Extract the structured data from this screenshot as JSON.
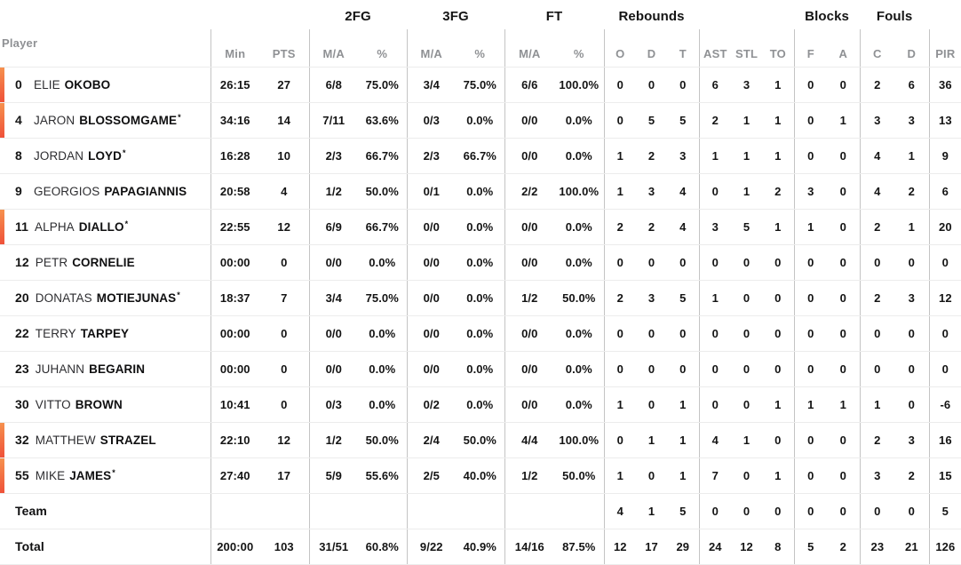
{
  "table": {
    "player_header": "Player",
    "groups": [
      "2FG",
      "3FG",
      "FT",
      "Rebounds",
      "Blocks",
      "Fouls"
    ],
    "subheaders": [
      "Min",
      "PTS",
      "M/A",
      "%",
      "M/A",
      "%",
      "M/A",
      "%",
      "O",
      "D",
      "T",
      "AST",
      "STL",
      "TO",
      "F",
      "A",
      "C",
      "D",
      "PIR"
    ],
    "starter_mark": "*",
    "players": [
      {
        "number": "0",
        "first": "ELIE",
        "last": "OKOBO",
        "starter": false,
        "on_court": true,
        "stats": [
          "26:15",
          "27",
          "6/8",
          "75.0%",
          "3/4",
          "75.0%",
          "6/6",
          "100.0%",
          "0",
          "0",
          "0",
          "6",
          "3",
          "1",
          "0",
          "0",
          "2",
          "6",
          "36"
        ]
      },
      {
        "number": "4",
        "first": "JARON",
        "last": "BLOSSOMGAME",
        "starter": true,
        "on_court": true,
        "stats": [
          "34:16",
          "14",
          "7/11",
          "63.6%",
          "0/3",
          "0.0%",
          "0/0",
          "0.0%",
          "0",
          "5",
          "5",
          "2",
          "1",
          "1",
          "0",
          "1",
          "3",
          "3",
          "13"
        ]
      },
      {
        "number": "8",
        "first": "JORDAN",
        "last": "LOYD",
        "starter": true,
        "on_court": false,
        "stats": [
          "16:28",
          "10",
          "2/3",
          "66.7%",
          "2/3",
          "66.7%",
          "0/0",
          "0.0%",
          "1",
          "2",
          "3",
          "1",
          "1",
          "1",
          "0",
          "0",
          "4",
          "1",
          "9"
        ]
      },
      {
        "number": "9",
        "first": "GEORGIOS",
        "last": "PAPAGIANNIS",
        "starter": false,
        "on_court": false,
        "stats": [
          "20:58",
          "4",
          "1/2",
          "50.0%",
          "0/1",
          "0.0%",
          "2/2",
          "100.0%",
          "1",
          "3",
          "4",
          "0",
          "1",
          "2",
          "3",
          "0",
          "4",
          "2",
          "6"
        ]
      },
      {
        "number": "11",
        "first": "ALPHA",
        "last": "DIALLO",
        "starter": true,
        "on_court": true,
        "stats": [
          "22:55",
          "12",
          "6/9",
          "66.7%",
          "0/0",
          "0.0%",
          "0/0",
          "0.0%",
          "2",
          "2",
          "4",
          "3",
          "5",
          "1",
          "1",
          "0",
          "2",
          "1",
          "20"
        ]
      },
      {
        "number": "12",
        "first": "PETR",
        "last": "CORNELIE",
        "starter": false,
        "on_court": false,
        "stats": [
          "00:00",
          "0",
          "0/0",
          "0.0%",
          "0/0",
          "0.0%",
          "0/0",
          "0.0%",
          "0",
          "0",
          "0",
          "0",
          "0",
          "0",
          "0",
          "0",
          "0",
          "0",
          "0"
        ]
      },
      {
        "number": "20",
        "first": "DONATAS",
        "last": "MOTIEJUNAS",
        "starter": true,
        "on_court": false,
        "stats": [
          "18:37",
          "7",
          "3/4",
          "75.0%",
          "0/0",
          "0.0%",
          "1/2",
          "50.0%",
          "2",
          "3",
          "5",
          "1",
          "0",
          "0",
          "0",
          "0",
          "2",
          "3",
          "12"
        ]
      },
      {
        "number": "22",
        "first": "TERRY",
        "last": "TARPEY",
        "starter": false,
        "on_court": false,
        "stats": [
          "00:00",
          "0",
          "0/0",
          "0.0%",
          "0/0",
          "0.0%",
          "0/0",
          "0.0%",
          "0",
          "0",
          "0",
          "0",
          "0",
          "0",
          "0",
          "0",
          "0",
          "0",
          "0"
        ]
      },
      {
        "number": "23",
        "first": "JUHANN",
        "last": "BEGARIN",
        "starter": false,
        "on_court": false,
        "stats": [
          "00:00",
          "0",
          "0/0",
          "0.0%",
          "0/0",
          "0.0%",
          "0/0",
          "0.0%",
          "0",
          "0",
          "0",
          "0",
          "0",
          "0",
          "0",
          "0",
          "0",
          "0",
          "0"
        ]
      },
      {
        "number": "30",
        "first": "VITTO",
        "last": "BROWN",
        "starter": false,
        "on_court": false,
        "stats": [
          "10:41",
          "0",
          "0/3",
          "0.0%",
          "0/2",
          "0.0%",
          "0/0",
          "0.0%",
          "1",
          "0",
          "1",
          "0",
          "0",
          "1",
          "1",
          "1",
          "1",
          "0",
          "-6"
        ]
      },
      {
        "number": "32",
        "first": "MATTHEW",
        "last": "STRAZEL",
        "starter": false,
        "on_court": true,
        "stats": [
          "22:10",
          "12",
          "1/2",
          "50.0%",
          "2/4",
          "50.0%",
          "4/4",
          "100.0%",
          "0",
          "1",
          "1",
          "4",
          "1",
          "0",
          "0",
          "0",
          "2",
          "3",
          "16"
        ]
      },
      {
        "number": "55",
        "first": "MIKE",
        "last": "JAMES",
        "starter": true,
        "on_court": true,
        "stats": [
          "27:40",
          "17",
          "5/9",
          "55.6%",
          "2/5",
          "40.0%",
          "1/2",
          "50.0%",
          "1",
          "0",
          "1",
          "7",
          "0",
          "1",
          "0",
          "0",
          "3",
          "2",
          "15"
        ]
      }
    ],
    "team_row": {
      "label": "Team",
      "stats": [
        "",
        "",
        "",
        "",
        "",
        "",
        "",
        "",
        "4",
        "1",
        "5",
        "0",
        "0",
        "0",
        "0",
        "0",
        "0",
        "0",
        "5"
      ]
    },
    "total_row": {
      "label": "Total",
      "stats": [
        "200:00",
        "103",
        "31/51",
        "60.8%",
        "9/22",
        "40.9%",
        "14/16",
        "87.5%",
        "12",
        "17",
        "29",
        "24",
        "12",
        "8",
        "5",
        "2",
        "23",
        "21",
        "126"
      ]
    }
  },
  "colors": {
    "on_court_bar_top": "#F6914E",
    "on_court_bar_bottom": "#EF5139",
    "header_gray": "#8F9194",
    "text_black": "#141414",
    "row_divider": "#ECECEC",
    "group_divider": "#C4C4C4"
  }
}
